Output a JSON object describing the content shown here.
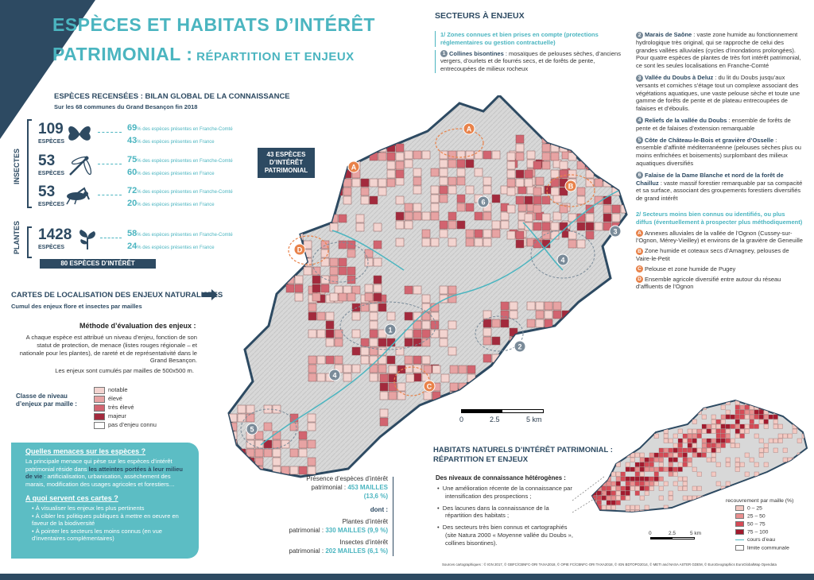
{
  "title": {
    "line1": "ESPÈCES ET HABITATS D’INTÉRÊT",
    "line2_big": "PATRIMONIAL :",
    "line2_small": " RÉPARTITION ET ENJEUX"
  },
  "census": {
    "heading": "ESPÈCES RECENSÉES : BILAN GLOBAL DE LA CONNAISSANCE",
    "sub": "Sur les 68 communes du Grand Besançon fin 2018",
    "insectes_label": "INSECTES",
    "plantes_label": "PLANTES",
    "rows": [
      {
        "num": "109",
        "lbl": "ESPÈCES",
        "icon": "butterfly-icon",
        "p1": "69",
        "t1": " des espèces présentes en Franche-Comté",
        "p2": "43",
        "t2": " des espèces présentes en France"
      },
      {
        "num": "53",
        "lbl": "ESPÈCES",
        "icon": "dragonfly-icon",
        "p1": "75",
        "t1": " des espèces présentes en Franche-Comté",
        "p2": "60",
        "t2": " des espèces présentes en France"
      },
      {
        "num": "53",
        "lbl": "ESPÈCES",
        "icon": "grasshopper-icon",
        "p1": "72",
        "t1": " des espèces présentes en Franche-Comté",
        "p2": "20",
        "t2": " des espèces présentes en France"
      },
      {
        "num": "1428",
        "lbl": "ESPÈCES",
        "icon": "plant-icon",
        "p1": "58",
        "t1": " des espèces présentes en Franche-Comté",
        "p2": "24",
        "t2": " des espèces présentes en France"
      }
    ],
    "pct_sign": "%",
    "insect_box": "43 ESPÈCES D’INTÉRÊT PATRIMONIAL",
    "plant_box": "80 ESPÈCES D’INTÉRÊT PATRIMONIAL"
  },
  "maps_heading": {
    "title": "CARTES DE LOCALISATION DES ENJEUX NATURALISTES",
    "sub": "Cumul des enjeux flore et insectes par mailles"
  },
  "method": {
    "title": "Méthode d’évaluation des enjeux :",
    "text": "A chaque espèce est attribué un niveau d’enjeu, fonction de son statut de protection, de menace (listes rouges régionale – et nationale pour les plantes), de rareté et de représentativité dans le Grand Besançon.",
    "text2": "Les enjeux sont cumulés par mailles de 500x500 m."
  },
  "legend": {
    "title": "Classe de niveau d’enjeux par maille :",
    "items": [
      {
        "label": "notable",
        "color": "#f3d4d0"
      },
      {
        "label": "élevé",
        "color": "#e7a3a3"
      },
      {
        "label": "très élevé",
        "color": "#d26470"
      },
      {
        "label": "majeur",
        "color": "#a32a3d"
      },
      {
        "label": "pas d’enjeu connu",
        "color": "#ffffff"
      }
    ]
  },
  "threats": {
    "q1": "Quelles menaces sur les espèces ?",
    "a1_pre": "La principale menace qui pèse sur les espèces d’intérêt patrimonial réside dans ",
    "a1_bold": "les atteintes portées à leur milieu de vie",
    "a1_post": " : artificialisation, urbanisation, assèchement des marais, modification des usages agricoles et forestiers…",
    "q2": "A quoi servent ces cartes ?",
    "bullets": [
      "À visualiser les enjeux les plus pertinents",
      "À cibler les politiques publiques à mettre en oeuvre en faveur de la biodiversité",
      "À pointer les secteurs les moins connus (en vue d’inventaires complémentaires)"
    ]
  },
  "stats": {
    "l1": "Présence d’espèces d’intérêt",
    "l2": "patrimonial : ",
    "v1": "453 MAILLES",
    "v1b": "(13,6 %)",
    "dont": "dont :",
    "l3": "Plantes d’intérêt",
    "l4": "patrimonial : ",
    "v2": "330 MAILLES (9,9 %)",
    "l5": "Insectes d’intérêt",
    "l6": "patrimonial : ",
    "v3": "202 MAILLES (6,1 %)"
  },
  "scale": {
    "s0": "0",
    "s1": "2.5",
    "s2": "5 km"
  },
  "sectors": {
    "heading": "SECTEURS À ENJEUX",
    "h1": "1/ Zones connues et bien prises en compte (protections réglementaires ou gestion contractuelle)",
    "items_left": [
      {
        "n": "1",
        "b": "Collines bisontines",
        "t": " : mosaïques de pelouses sèches, d’anciens vergers, d’ourlets et de fourrés secs, et de forêts de pente, entrecoupées de milieux rocheux"
      }
    ],
    "items_right": [
      {
        "n": "2",
        "b": "Marais de Saône",
        "t": " : vaste zone humide au fonctionnement hydrologique très original, qui se rapproche de celui des grandes vallées alluviales (cycles d’inondations prolongées). Pour quatre espèces de plantes de très fort intérêt patrimonial, ce sont les seules localisations en Franche-Comté"
      },
      {
        "n": "3",
        "b": "Vallée du Doubs à Deluz",
        "t": " : du lit du Doubs jusqu’aux versants et corniches s’étage tout un complexe associant des végétations aquatiques, une vaste pelouse sèche et toute une gamme de forêts de pente et de plateau entrecoupées de falaises et d’éboulis."
      },
      {
        "n": "4",
        "b": "Reliefs de la vallée du Doubs",
        "t": " : ensemble de forêts de pente et de falaises d’extension remarquable"
      },
      {
        "n": "5",
        "b": "Côte de Château-le-Bois et gravière d’Osselle",
        "t": " : ensemble d’affinité méditerranéenne (pelouses sèches plus ou moins enfrichées et boisements) surplombant des milieux aquatiques diversifiés"
      },
      {
        "n": "6",
        "b": "Falaise de la Dame Blanche et nord de la forêt de Chailluz",
        "t": " : vaste massif forestier remarquable par sa compacité et sa surface, associant des groupements forestiers diversifiés de grand intérêt"
      }
    ],
    "h2": "2/ Secteurs moins bien connus ou identifiés, ou plus diffus (éventuellement à prospecter plus méthodiquement)",
    "items_b": [
      {
        "n": "A",
        "t": "Annexes alluviales de la vallée de l’Ognon (Cussey-sur-l’Ognon, Mérey-Vieilley) et environs de la gravière de Geneuille"
      },
      {
        "n": "B",
        "t": "Zone humide et coteaux secs d’Amagney, pelouses de Vaire-le-Petit"
      },
      {
        "n": "C",
        "t": "Pelouse et zone humide de Pugey"
      },
      {
        "n": "D",
        "t": "Ensemble agricole diversifié entre autour du réseau d’affluents de l’Ognon"
      }
    ]
  },
  "habitats": {
    "heading1": "HABITATS NATURELS D’INTÉRÊT PATRIMONIAL :",
    "heading2": "RÉPARTITION ET ENJEUX",
    "sub": "Des niveaux de connaissance hétérogènes :",
    "bullets": [
      "Une amélioration récente de la connaissance par intensification des prospections ;",
      "Des lacunes dans la connaissance de la répartition des habitats ;",
      "Des secteurs très bien connus et cartographiés (site Natura 2000 « Moyenne vallée du Doubs », collines bisontines)."
    ]
  },
  "legend2": {
    "title": "recouvrement par maille (%)",
    "items": [
      {
        "label": "0 – 25",
        "color": "#f3c9c2"
      },
      {
        "label": "25 – 50",
        "color": "#e98f8f"
      },
      {
        "label": "50 – 75",
        "color": "#d64a56"
      },
      {
        "label": "75 – 100",
        "color": "#a3192d"
      }
    ],
    "river": "cours d’eau",
    "limit": "limite communale"
  },
  "scale2": {
    "s0": "0",
    "s1": "2.5",
    "s2": "5 km"
  },
  "sources": "Sources cartographiques : © IGN  2017, © GBFC/CBNFC-ORI   TAXA2018, © OPIE FC/CBNFC-ORI   TAXA2018, © IGN   BDTOPO2014, © METI and NASA   ASTER GDEM, © EuroGeographics   EuroGlobalMap Opendata",
  "map_labels": {
    "n1": "1",
    "n2": "2",
    "n3": "3",
    "n4": "4",
    "n5": "5",
    "n6": "6",
    "a": "A",
    "b": "B",
    "c": "C",
    "d": "D"
  },
  "colors": {
    "teal": "#4bb5c0",
    "navy": "#2d4a62",
    "orange": "#e8824a"
  }
}
